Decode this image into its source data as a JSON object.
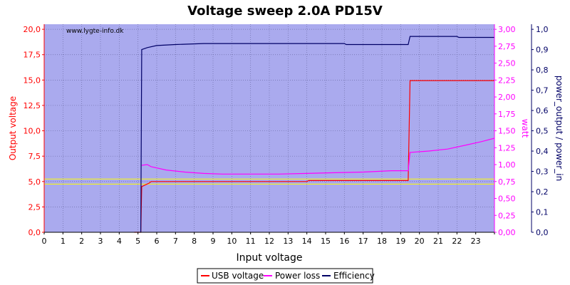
{
  "chart_data": {
    "type": "line",
    "title": "Voltage sweep 2.0A PD15V",
    "watermark": "www.lygte-info.dk",
    "xlabel": "Input voltage",
    "xlim": [
      0,
      24
    ],
    "x_ticks": [
      0,
      1,
      2,
      3,
      4,
      5,
      6,
      7,
      8,
      9,
      10,
      11,
      12,
      13,
      14,
      15,
      16,
      17,
      18,
      19,
      20,
      21,
      22,
      23
    ],
    "y_left": {
      "label": "Output voltage",
      "color": "#ff0000",
      "lim": [
        0,
        20.5
      ],
      "ticks": [
        0.0,
        2.5,
        5.0,
        7.5,
        10.0,
        12.5,
        15.0,
        17.5,
        20.0
      ],
      "tick_labels": [
        "0,0",
        "2,5",
        "5,0",
        "7,5",
        "10,0",
        "12,5",
        "15,0",
        "17,5",
        "20,0"
      ]
    },
    "y_right1": {
      "label": "watt",
      "color": "#ff00ff",
      "lim": [
        0,
        3.075
      ],
      "ticks": [
        0,
        0.25,
        0.5,
        0.75,
        1.0,
        1.25,
        1.5,
        1.75,
        2.0,
        2.25,
        2.5,
        2.75,
        3.0
      ],
      "tick_labels": [
        "0,00",
        "0,25",
        "0,50",
        "0,75",
        "1,00",
        "1,25",
        "1,50",
        "1,75",
        "2,00",
        "2,25",
        "2,50",
        "2,75",
        "3,00"
      ]
    },
    "y_right2": {
      "label": "power_output / power_in",
      "color": "#000066",
      "lim": [
        0,
        1.025
      ],
      "ticks": [
        0,
        0.1,
        0.2,
        0.3,
        0.4,
        0.5,
        0.6,
        0.7,
        0.8,
        0.9,
        1.0
      ],
      "tick_labels": [
        "0,0",
        "0,1",
        "0,2",
        "0,3",
        "0,4",
        "0,5",
        "0,6",
        "0,7",
        "0,8",
        "0,9",
        "1,0"
      ]
    },
    "reference_lines": [
      {
        "axis": "left",
        "y": 5.25,
        "color": "#ffff00"
      },
      {
        "axis": "left",
        "y": 4.75,
        "color": "#ffff00"
      }
    ],
    "grid": true,
    "legend_position": "bottom-center",
    "series": [
      {
        "name": "USB voltage",
        "axis": "left",
        "color": "#ff0000",
        "points": [
          [
            4.8,
            0
          ],
          [
            5.15,
            0
          ],
          [
            5.2,
            4.5
          ],
          [
            5.6,
            4.85
          ],
          [
            5.7,
            5.0
          ],
          [
            14.0,
            5.0
          ],
          [
            14.1,
            5.1
          ],
          [
            19.4,
            5.1
          ],
          [
            19.5,
            14.95
          ],
          [
            24.0,
            14.95
          ]
        ]
      },
      {
        "name": "Power loss",
        "axis": "right1",
        "color": "#ff00ff",
        "points": [
          [
            5.2,
            0.99
          ],
          [
            5.5,
            1.0
          ],
          [
            5.7,
            0.97
          ],
          [
            6.5,
            0.92
          ],
          [
            7.5,
            0.89
          ],
          [
            8.5,
            0.87
          ],
          [
            9.5,
            0.86
          ],
          [
            11.0,
            0.86
          ],
          [
            12.5,
            0.86
          ],
          [
            14.0,
            0.87
          ],
          [
            15.5,
            0.88
          ],
          [
            17.0,
            0.89
          ],
          [
            18.5,
            0.91
          ],
          [
            19.4,
            0.91
          ],
          [
            19.5,
            1.18
          ],
          [
            20.5,
            1.2
          ],
          [
            21.5,
            1.23
          ],
          [
            22.5,
            1.29
          ],
          [
            23.3,
            1.34
          ],
          [
            24.0,
            1.39
          ]
        ]
      },
      {
        "name": "Efficiency",
        "axis": "right2",
        "color": "#000066",
        "points": [
          [
            5.15,
            0
          ],
          [
            5.2,
            0.9
          ],
          [
            5.5,
            0.91
          ],
          [
            6.0,
            0.92
          ],
          [
            7.0,
            0.925
          ],
          [
            8.5,
            0.93
          ],
          [
            12.0,
            0.93
          ],
          [
            16.0,
            0.93
          ],
          [
            16.1,
            0.925
          ],
          [
            19.4,
            0.925
          ],
          [
            19.5,
            0.965
          ],
          [
            22.0,
            0.965
          ],
          [
            22.1,
            0.96
          ],
          [
            24.0,
            0.96
          ]
        ]
      }
    ]
  }
}
